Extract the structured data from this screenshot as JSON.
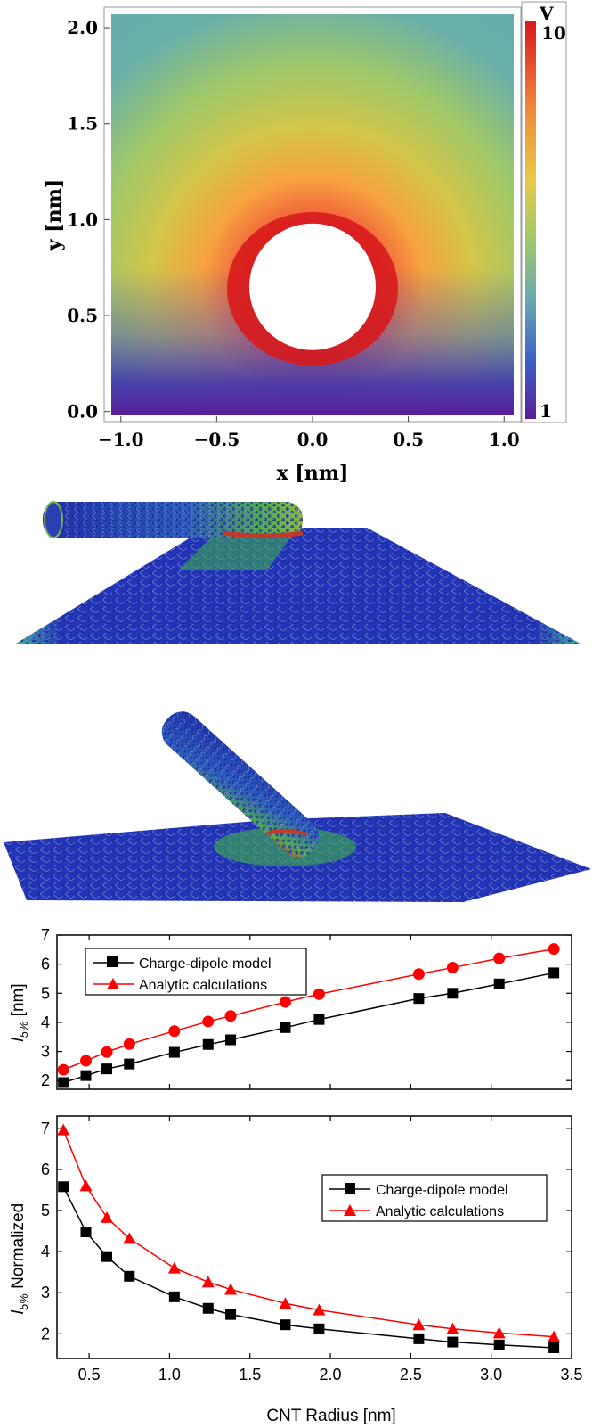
{
  "chart_data": [
    {
      "type": "heatmap",
      "title": "",
      "xlabel": "x [nm]",
      "ylabel": "y [nm]",
      "xlim": [
        -1.05,
        1.05
      ],
      "ylim": [
        -0.02,
        2.07
      ],
      "xticks": [
        "−1.0",
        "−0.5",
        "0.0",
        "0.5",
        "1.0"
      ],
      "yticks": [
        "0.0",
        "0.5",
        "1.0",
        "1.5",
        "2.0"
      ],
      "xtick_values": [
        -1.0,
        -0.5,
        0.0,
        0.5,
        1.0
      ],
      "ytick_values": [
        0.0,
        0.5,
        1.0,
        1.5,
        2.0
      ],
      "colorbar": {
        "unit": "V",
        "max_label": "10",
        "min_label": "1",
        "min": 1,
        "max": 10
      },
      "hole": {
        "cx": 0.0,
        "cy": 0.65,
        "r": 0.33
      }
    },
    {
      "type": "line",
      "ylabel_main": "l",
      "ylabel_sub": "5%",
      "ylabel_unit": " [nm]",
      "xlim": [
        0.3,
        3.5
      ],
      "ylim": [
        1.7,
        7
      ],
      "yticks": [
        "2",
        "3",
        "4",
        "5",
        "6",
        "7"
      ],
      "ytick_values": [
        2,
        3,
        4,
        5,
        6,
        7
      ],
      "legend": {
        "placement": "top-left"
      },
      "series": [
        {
          "name": "Charge-dipole model",
          "color": "#000000",
          "marker": "square",
          "x": [
            0.34,
            0.48,
            0.61,
            0.75,
            1.03,
            1.24,
            1.38,
            1.72,
            1.93,
            2.55,
            2.76,
            3.05,
            3.39
          ],
          "y": [
            1.93,
            2.17,
            2.4,
            2.57,
            2.97,
            3.24,
            3.4,
            3.82,
            4.1,
            4.82,
            5.0,
            5.32,
            5.7
          ]
        },
        {
          "name": "Analytic calculations",
          "color": "#ff0000",
          "marker": "circle",
          "x": [
            0.34,
            0.48,
            0.61,
            0.75,
            1.03,
            1.24,
            1.38,
            1.72,
            1.93,
            2.55,
            2.76,
            3.05,
            3.39
          ],
          "y": [
            2.37,
            2.68,
            2.98,
            3.25,
            3.7,
            4.03,
            4.22,
            4.7,
            4.97,
            5.66,
            5.88,
            6.2,
            6.52
          ]
        }
      ]
    },
    {
      "type": "line",
      "ylabel_main": "l",
      "ylabel_sub": "5%",
      "ylabel_unit": " Normalized",
      "xlabel": "CNT Radius [nm]",
      "xlim": [
        0.3,
        3.5
      ],
      "ylim": [
        1.4,
        7.3
      ],
      "xticks": [
        "0.5",
        "1.0",
        "1.5",
        "2.0",
        "2.5",
        "3.0",
        "3.5"
      ],
      "xtick_values": [
        0.5,
        1.0,
        1.5,
        2.0,
        2.5,
        3.0,
        3.5
      ],
      "yticks": [
        "2",
        "3",
        "4",
        "5",
        "6",
        "7"
      ],
      "ytick_values": [
        2,
        3,
        4,
        5,
        6,
        7
      ],
      "legend": {
        "placement": "top-right"
      },
      "series": [
        {
          "name": "Charge-dipole model",
          "color": "#000000",
          "marker": "square",
          "x": [
            0.34,
            0.48,
            0.61,
            0.75,
            1.03,
            1.24,
            1.38,
            1.72,
            1.93,
            2.55,
            2.76,
            3.05,
            3.39
          ],
          "y": [
            5.58,
            4.48,
            3.88,
            3.4,
            2.9,
            2.62,
            2.47,
            2.22,
            2.12,
            1.88,
            1.8,
            1.73,
            1.66
          ]
        },
        {
          "name": "Analytic calculations",
          "color": "#ff0000",
          "marker": "triangle",
          "x": [
            0.34,
            0.48,
            0.61,
            0.75,
            1.03,
            1.24,
            1.38,
            1.72,
            1.93,
            2.55,
            2.76,
            3.05,
            3.39
          ],
          "y": [
            6.96,
            5.6,
            4.83,
            4.32,
            3.6,
            3.26,
            3.08,
            2.74,
            2.58,
            2.22,
            2.12,
            2.02,
            1.93
          ]
        }
      ]
    }
  ]
}
